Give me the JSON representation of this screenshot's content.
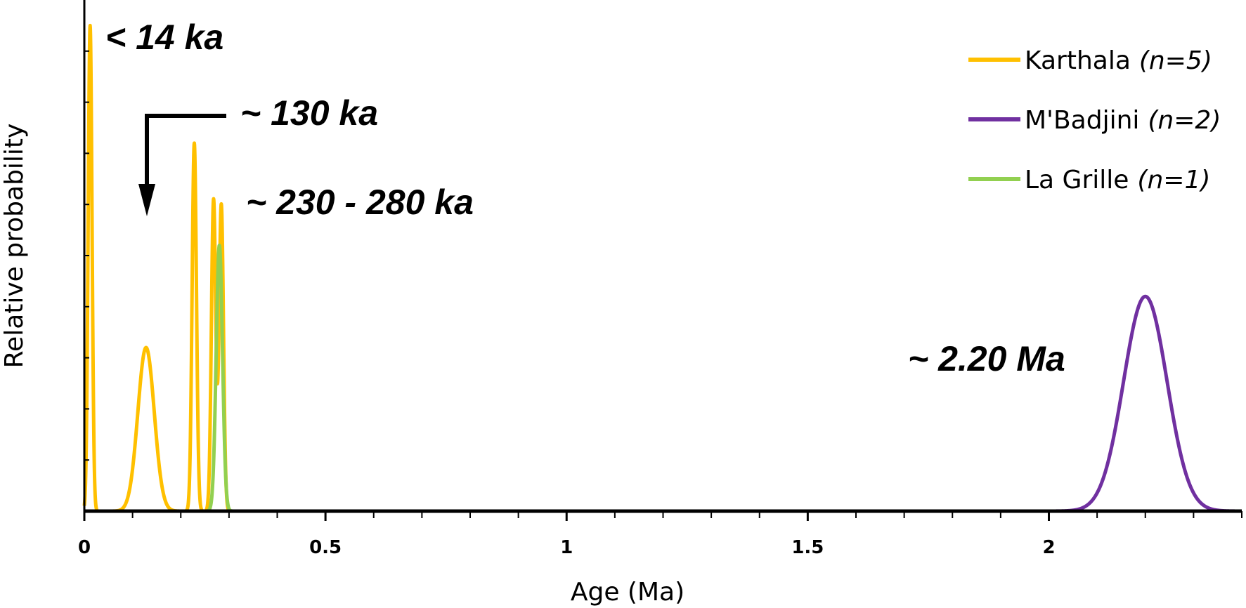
{
  "chart_data": {
    "type": "line",
    "xlabel": "Age (Ma)",
    "ylabel": "Relative probability",
    "xlim": [
      0,
      2.4
    ],
    "ylim": [
      0,
      1
    ],
    "x_ticks": [
      0,
      0.5,
      1,
      1.5,
      2
    ],
    "x_tick_labels": [
      "0",
      "0.5",
      "1",
      "1.5",
      "2"
    ],
    "x_minor_step": 0.1,
    "y_tick_count": 9,
    "legend_position": "top-right",
    "series": [
      {
        "name": "Karthala",
        "n_label": "(n=5)",
        "color": "#FFC000",
        "peaks": [
          {
            "center": 0.012,
            "height": 0.95,
            "sigma": 0.004
          },
          {
            "center": 0.128,
            "height": 0.32,
            "sigma": 0.017
          },
          {
            "center": 0.228,
            "height": 0.72,
            "sigma": 0.0045
          },
          {
            "center": 0.268,
            "height": 0.61,
            "sigma": 0.0045
          },
          {
            "center": 0.284,
            "height": 0.6,
            "sigma": 0.0045
          }
        ]
      },
      {
        "name": "M'Badjini",
        "n_label": "(n=2)",
        "color": "#7030A0",
        "peaks": [
          {
            "center": 2.2,
            "height": 0.42,
            "sigma": 0.045
          }
        ]
      },
      {
        "name": "La Grille",
        "n_label": "(n=1)",
        "color": "#92D050",
        "peaks": [
          {
            "center": 0.28,
            "height": 0.52,
            "sigma": 0.0065
          }
        ]
      }
    ],
    "annotations": [
      {
        "text": "< 14 ka"
      },
      {
        "text": "~ 130 ka"
      },
      {
        "text": "~ 230 - 280 ka"
      },
      {
        "text": "~ 2.20 Ma"
      }
    ]
  }
}
